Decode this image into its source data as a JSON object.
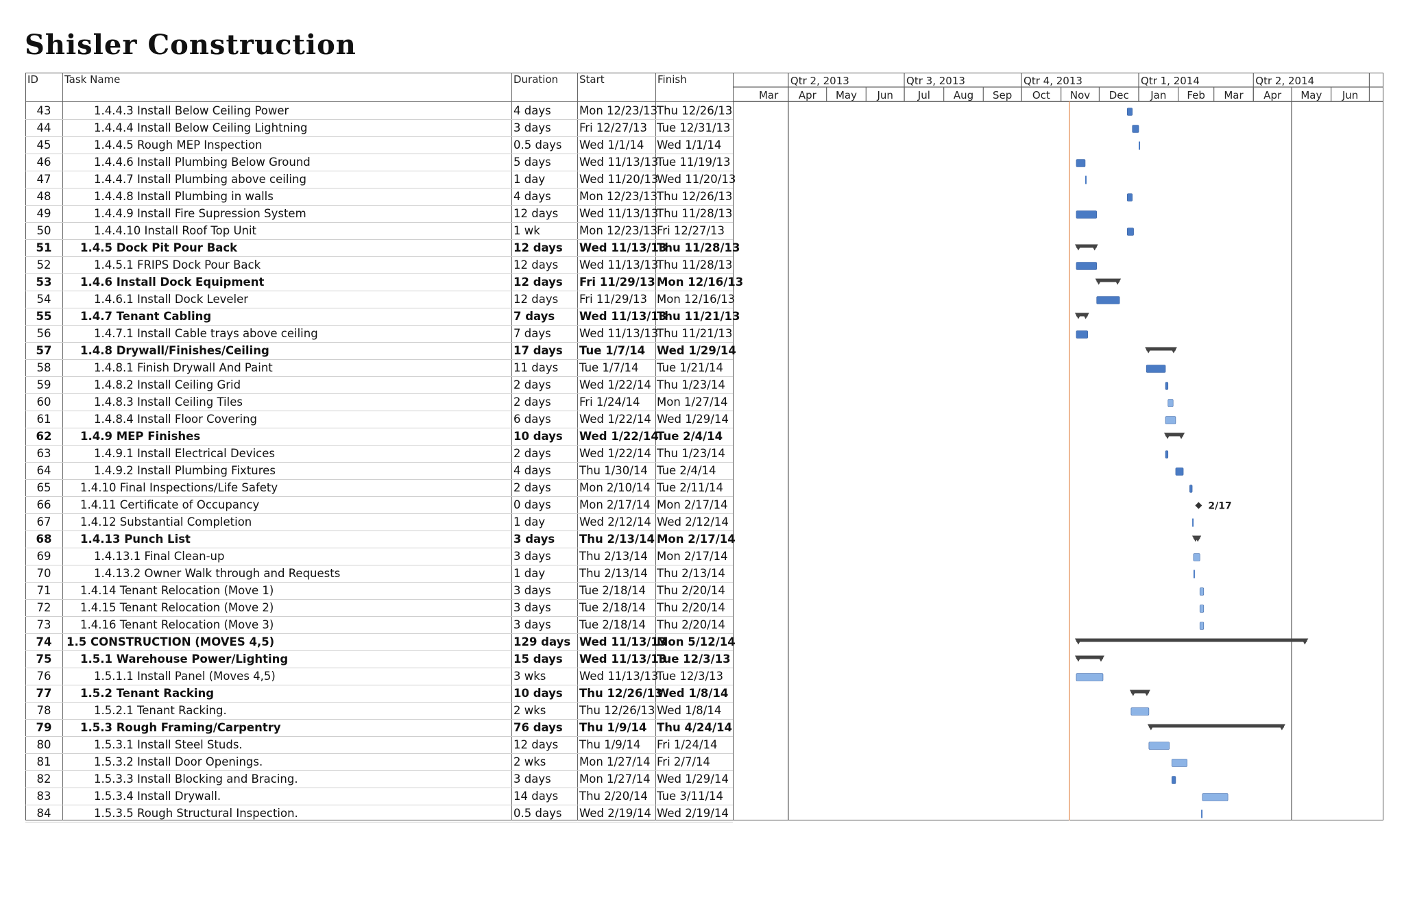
{
  "title": "Shisler Construction",
  "columns": {
    "id": "ID",
    "task_name": "Task Name",
    "duration": "Duration",
    "start": "Start",
    "finish": "Finish"
  },
  "timescale": {
    "quarters": [
      "Qtr 2, 2013",
      "Qtr 3, 2013",
      "Qtr 4, 2013",
      "Qtr 1, 2014",
      "Qtr 2, 2014"
    ],
    "months": [
      "Mar",
      "Apr",
      "May",
      "Jun",
      "Jul",
      "Aug",
      "Sep",
      "Oct",
      "Nov",
      "Dec",
      "Jan",
      "Feb",
      "Mar",
      "Apr",
      "May",
      "Jun"
    ],
    "status_date": "2013-11-13"
  },
  "colors": {
    "task_bar": "#4a7bc4",
    "task_bar_light": "#8db4e6",
    "summary_bar": "#444444",
    "status_line": "#e8a070",
    "milestone": "#333333"
  },
  "tasks": [
    {
      "id": "43",
      "name": "1.4.4.3 Install Below Ceiling Power",
      "duration": "4 days",
      "start": "Mon 12/23/13",
      "finish": "Thu 12/26/13",
      "level": 3,
      "summary": false,
      "bar_start": "2013-12-23",
      "bar_end": "2013-12-26",
      "critical": true
    },
    {
      "id": "44",
      "name": "1.4.4.4 Install Below Ceiling Lightning",
      "duration": "3 days",
      "start": "Fri 12/27/13",
      "finish": "Tue 12/31/13",
      "level": 3,
      "summary": false,
      "bar_start": "2013-12-27",
      "bar_end": "2013-12-31",
      "critical": true
    },
    {
      "id": "45",
      "name": "1.4.4.5 Rough MEP Inspection",
      "duration": "0.5 days",
      "start": "Wed 1/1/14",
      "finish": "Wed 1/1/14",
      "level": 3,
      "summary": false,
      "bar_start": "2014-01-01",
      "bar_end": "2014-01-01",
      "critical": true
    },
    {
      "id": "46",
      "name": "1.4.4.6 Install Plumbing Below Ground",
      "duration": "5 days",
      "start": "Wed 11/13/13",
      "finish": "Tue 11/19/13",
      "level": 3,
      "summary": false,
      "bar_start": "2013-11-13",
      "bar_end": "2013-11-19",
      "critical": true
    },
    {
      "id": "47",
      "name": "1.4.4.7 Install Plumbing above ceiling",
      "duration": "1 day",
      "start": "Wed 11/20/13",
      "finish": "Wed 11/20/13",
      "level": 3,
      "summary": false,
      "bar_start": "2013-11-20",
      "bar_end": "2013-11-20",
      "critical": true
    },
    {
      "id": "48",
      "name": "1.4.4.8 Install Plumbing in walls",
      "duration": "4 days",
      "start": "Mon 12/23/13",
      "finish": "Thu 12/26/13",
      "level": 3,
      "summary": false,
      "bar_start": "2013-12-23",
      "bar_end": "2013-12-26",
      "critical": true
    },
    {
      "id": "49",
      "name": "1.4.4.9 Install Fire Supression System",
      "duration": "12 days",
      "start": "Wed 11/13/13",
      "finish": "Thu 11/28/13",
      "level": 3,
      "summary": false,
      "bar_start": "2013-11-13",
      "bar_end": "2013-11-28",
      "critical": true
    },
    {
      "id": "50",
      "name": "1.4.4.10 Install Roof Top Unit",
      "duration": "1 wk",
      "start": "Mon 12/23/13",
      "finish": "Fri 12/27/13",
      "level": 3,
      "summary": false,
      "bar_start": "2013-12-23",
      "bar_end": "2013-12-27",
      "critical": true
    },
    {
      "id": "51",
      "name": "1.4.5 Dock Pit Pour Back",
      "duration": "12 days",
      "start": "Wed 11/13/13",
      "finish": "Thu 11/28/13",
      "level": 2,
      "summary": true,
      "bar_start": "2013-11-13",
      "bar_end": "2013-11-28",
      "critical": true
    },
    {
      "id": "52",
      "name": "1.4.5.1 FRIPS Dock Pour Back",
      "duration": "12 days",
      "start": "Wed 11/13/13",
      "finish": "Thu 11/28/13",
      "level": 3,
      "summary": false,
      "bar_start": "2013-11-13",
      "bar_end": "2013-11-28",
      "critical": true
    },
    {
      "id": "53",
      "name": "1.4.6 Install Dock Equipment",
      "duration": "12 days",
      "start": "Fri 11/29/13",
      "finish": "Mon 12/16/13",
      "level": 2,
      "summary": true,
      "bar_start": "2013-11-29",
      "bar_end": "2013-12-16",
      "critical": true
    },
    {
      "id": "54",
      "name": "1.4.6.1 Install Dock Leveler",
      "duration": "12 days",
      "start": "Fri 11/29/13",
      "finish": "Mon 12/16/13",
      "level": 3,
      "summary": false,
      "bar_start": "2013-11-29",
      "bar_end": "2013-12-16",
      "critical": true
    },
    {
      "id": "55",
      "name": "1.4.7 Tenant Cabling",
      "duration": "7 days",
      "start": "Wed 11/13/13",
      "finish": "Thu 11/21/13",
      "level": 2,
      "summary": true,
      "bar_start": "2013-11-13",
      "bar_end": "2013-11-21",
      "critical": true
    },
    {
      "id": "56",
      "name": "1.4.7.1 Install Cable trays above ceiling",
      "duration": "7 days",
      "start": "Wed 11/13/13",
      "finish": "Thu 11/21/13",
      "level": 3,
      "summary": false,
      "bar_start": "2013-11-13",
      "bar_end": "2013-11-21",
      "critical": true
    },
    {
      "id": "57",
      "name": "1.4.8 Drywall/Finishes/Ceiling",
      "duration": "17 days",
      "start": "Tue 1/7/14",
      "finish": "Wed 1/29/14",
      "level": 2,
      "summary": true,
      "bar_start": "2014-01-07",
      "bar_end": "2014-01-29",
      "critical": true
    },
    {
      "id": "58",
      "name": "1.4.8.1 Finish Drywall And Paint",
      "duration": "11 days",
      "start": "Tue 1/7/14",
      "finish": "Tue 1/21/14",
      "level": 3,
      "summary": false,
      "bar_start": "2014-01-07",
      "bar_end": "2014-01-21",
      "critical": true
    },
    {
      "id": "59",
      "name": "1.4.8.2 Install Ceiling Grid",
      "duration": "2 days",
      "start": "Wed 1/22/14",
      "finish": "Thu 1/23/14",
      "level": 3,
      "summary": false,
      "bar_start": "2014-01-22",
      "bar_end": "2014-01-23",
      "critical": true
    },
    {
      "id": "60",
      "name": "1.4.8.3 Install Ceiling Tiles",
      "duration": "2 days",
      "start": "Fri 1/24/14",
      "finish": "Mon 1/27/14",
      "level": 3,
      "summary": false,
      "bar_start": "2014-01-24",
      "bar_end": "2014-01-27",
      "critical": false
    },
    {
      "id": "61",
      "name": "1.4.8.4 Install Floor Covering",
      "duration": "6 days",
      "start": "Wed 1/22/14",
      "finish": "Wed 1/29/14",
      "level": 3,
      "summary": false,
      "bar_start": "2014-01-22",
      "bar_end": "2014-01-29",
      "critical": false
    },
    {
      "id": "62",
      "name": "1.4.9 MEP Finishes",
      "duration": "10 days",
      "start": "Wed 1/22/14",
      "finish": "Tue 2/4/14",
      "level": 2,
      "summary": true,
      "bar_start": "2014-01-22",
      "bar_end": "2014-02-04",
      "critical": true
    },
    {
      "id": "63",
      "name": "1.4.9.1 Install Electrical Devices",
      "duration": "2 days",
      "start": "Wed 1/22/14",
      "finish": "Thu 1/23/14",
      "level": 3,
      "summary": false,
      "bar_start": "2014-01-22",
      "bar_end": "2014-01-23",
      "critical": true
    },
    {
      "id": "64",
      "name": "1.4.9.2 Install Plumbing Fixtures",
      "duration": "4 days",
      "start": "Thu 1/30/14",
      "finish": "Tue 2/4/14",
      "level": 3,
      "summary": false,
      "bar_start": "2014-01-30",
      "bar_end": "2014-02-04",
      "critical": true
    },
    {
      "id": "65",
      "name": "1.4.10 Final Inspections/Life Safety",
      "duration": "2 days",
      "start": "Mon 2/10/14",
      "finish": "Tue 2/11/14",
      "level": 2,
      "summary": false,
      "bar_start": "2014-02-10",
      "bar_end": "2014-02-11",
      "critical": true
    },
    {
      "id": "66",
      "name": "1.4.11 Certificate of Occupancy",
      "duration": "0 days",
      "start": "Mon 2/17/14",
      "finish": "Mon 2/17/14",
      "level": 2,
      "summary": false,
      "milestone": true,
      "milestone_label": "2/17",
      "bar_start": "2014-02-17",
      "bar_end": "2014-02-17",
      "critical": true
    },
    {
      "id": "67",
      "name": "1.4.12 Substantial Completion",
      "duration": "1 day",
      "start": "Wed 2/12/14",
      "finish": "Wed 2/12/14",
      "level": 2,
      "summary": false,
      "bar_start": "2014-02-12",
      "bar_end": "2014-02-12",
      "critical": true
    },
    {
      "id": "68",
      "name": "1.4.13 Punch List",
      "duration": "3 days",
      "start": "Thu 2/13/14",
      "finish": "Mon 2/17/14",
      "level": 2,
      "summary": true,
      "bar_start": "2014-02-13",
      "bar_end": "2014-02-17",
      "critical": true
    },
    {
      "id": "69",
      "name": "1.4.13.1 Final Clean-up",
      "duration": "3 days",
      "start": "Thu 2/13/14",
      "finish": "Mon 2/17/14",
      "level": 3,
      "summary": false,
      "bar_start": "2014-02-13",
      "bar_end": "2014-02-17",
      "critical": false
    },
    {
      "id": "70",
      "name": "1.4.13.2 Owner Walk through and Requests",
      "duration": "1 day",
      "start": "Thu 2/13/14",
      "finish": "Thu 2/13/14",
      "level": 3,
      "summary": false,
      "bar_start": "2014-02-13",
      "bar_end": "2014-02-13",
      "critical": false
    },
    {
      "id": "71",
      "name": "1.4.14 Tenant Relocation (Move 1)",
      "duration": "3 days",
      "start": "Tue 2/18/14",
      "finish": "Thu 2/20/14",
      "level": 2,
      "summary": false,
      "bar_start": "2014-02-18",
      "bar_end": "2014-02-20",
      "critical": false
    },
    {
      "id": "72",
      "name": "1.4.15 Tenant Relocation (Move 2)",
      "duration": "3 days",
      "start": "Tue 2/18/14",
      "finish": "Thu 2/20/14",
      "level": 2,
      "summary": false,
      "bar_start": "2014-02-18",
      "bar_end": "2014-02-20",
      "critical": false
    },
    {
      "id": "73",
      "name": "1.4.16 Tenant Relocation (Move 3)",
      "duration": "3 days",
      "start": "Tue 2/18/14",
      "finish": "Thu 2/20/14",
      "level": 2,
      "summary": false,
      "bar_start": "2014-02-18",
      "bar_end": "2014-02-20",
      "critical": false
    },
    {
      "id": "74",
      "name": "1.5 CONSTRUCTION (MOVES 4,5)",
      "duration": "129 days",
      "start": "Wed 11/13/13",
      "finish": "Mon 5/12/14",
      "level": 1,
      "summary": true,
      "bar_start": "2013-11-13",
      "bar_end": "2014-05-12",
      "critical": true
    },
    {
      "id": "75",
      "name": "1.5.1 Warehouse Power/Lighting",
      "duration": "15 days",
      "start": "Wed 11/13/13",
      "finish": "Tue 12/3/13",
      "level": 2,
      "summary": true,
      "bar_start": "2013-11-13",
      "bar_end": "2013-12-03",
      "critical": true
    },
    {
      "id": "76",
      "name": "1.5.1.1 Install Panel (Moves 4,5)",
      "duration": "3 wks",
      "start": "Wed 11/13/13",
      "finish": "Tue 12/3/13",
      "level": 3,
      "summary": false,
      "bar_start": "2013-11-13",
      "bar_end": "2013-12-03",
      "critical": false
    },
    {
      "id": "77",
      "name": "1.5.2 Tenant Racking",
      "duration": "10 days",
      "start": "Thu 12/26/13",
      "finish": "Wed 1/8/14",
      "level": 2,
      "summary": true,
      "bar_start": "2013-12-26",
      "bar_end": "2014-01-08",
      "critical": true
    },
    {
      "id": "78",
      "name": "1.5.2.1 Tenant Racking.",
      "duration": "2 wks",
      "start": "Thu 12/26/13",
      "finish": "Wed 1/8/14",
      "level": 3,
      "summary": false,
      "bar_start": "2013-12-26",
      "bar_end": "2014-01-08",
      "critical": false
    },
    {
      "id": "79",
      "name": "1.5.3 Rough Framing/Carpentry",
      "duration": "76 days",
      "start": "Thu 1/9/14",
      "finish": "Thu 4/24/14",
      "level": 2,
      "summary": true,
      "bar_start": "2014-01-09",
      "bar_end": "2014-04-24",
      "critical": true
    },
    {
      "id": "80",
      "name": "1.5.3.1 Install Steel Studs.",
      "duration": "12 days",
      "start": "Thu 1/9/14",
      "finish": "Fri 1/24/14",
      "level": 3,
      "summary": false,
      "bar_start": "2014-01-09",
      "bar_end": "2014-01-24",
      "critical": false
    },
    {
      "id": "81",
      "name": "1.5.3.2 Install Door Openings.",
      "duration": "2 wks",
      "start": "Mon 1/27/14",
      "finish": "Fri 2/7/14",
      "level": 3,
      "summary": false,
      "bar_start": "2014-01-27",
      "bar_end": "2014-02-07",
      "critical": false
    },
    {
      "id": "82",
      "name": "1.5.3.3 Install Blocking and Bracing.",
      "duration": "3 days",
      "start": "Mon 1/27/14",
      "finish": "Wed 1/29/14",
      "level": 3,
      "summary": false,
      "bar_start": "2014-01-27",
      "bar_end": "2014-01-29",
      "critical": true
    },
    {
      "id": "83",
      "name": "1.5.3.4 Install Drywall.",
      "duration": "14 days",
      "start": "Thu 2/20/14",
      "finish": "Tue 3/11/14",
      "level": 3,
      "summary": false,
      "bar_start": "2014-02-20",
      "bar_end": "2014-03-11",
      "critical": false
    },
    {
      "id": "84",
      "name": "1.5.3.5 Rough Structural Inspection.",
      "duration": "0.5 days",
      "start": "Wed 2/19/14",
      "finish": "Wed 2/19/14",
      "level": 3,
      "summary": false,
      "bar_start": "2014-02-19",
      "bar_end": "2014-02-19",
      "critical": false
    }
  ]
}
